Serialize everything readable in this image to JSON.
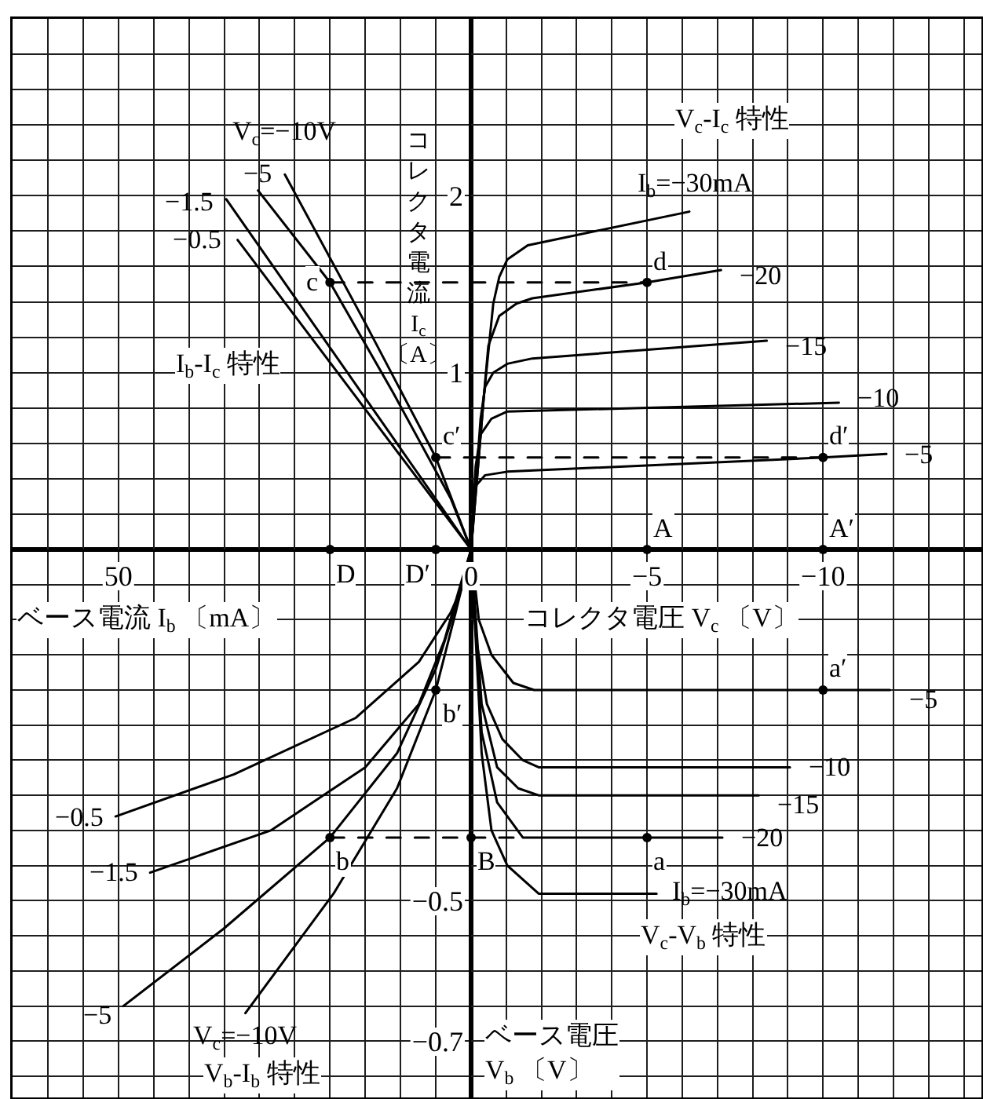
{
  "chart_data": [
    {
      "type": "line",
      "title": "I$_{b}$-I$_{c}$ 特性",
      "xlabel": "ベース電流 I$_{b}$ 〔mA〕",
      "xlim": [
        65,
        0
      ],
      "xticks": [
        {
          "value": 65,
          "label": null
        },
        {
          "value": 60,
          "label": null
        },
        {
          "value": 55,
          "label": null
        },
        50,
        {
          "value": 45,
          "label": null
        },
        {
          "value": 40,
          "label": null
        },
        {
          "value": 35,
          "label": null
        },
        {
          "value": 30,
          "label": null
        },
        {
          "value": 25,
          "label": null
        },
        {
          "value": 20,
          "label": null
        },
        {
          "value": 15,
          "label": null
        },
        {
          "value": 10,
          "label": null
        },
        {
          "value": 5,
          "label": null
        },
        0
      ],
      "ylim": [
        0,
        3
      ],
      "yticks": [
        {
          "value": 0,
          "label": null
        },
        {
          "value": 0.2,
          "label": null
        },
        {
          "value": 0.4,
          "label": null
        },
        {
          "value": 0.6,
          "label": null
        },
        {
          "value": 0.8,
          "label": null
        },
        1,
        {
          "value": 1.2,
          "label": null
        },
        {
          "value": 1.4,
          "label": null
        },
        {
          "value": 1.6,
          "label": null
        },
        {
          "value": 1.8,
          "label": null
        },
        2,
        {
          "value": 2.2,
          "label": null
        },
        {
          "value": 2.4,
          "label": null
        },
        {
          "value": 2.6,
          "label": null
        },
        {
          "value": 2.8,
          "label": null
        },
        {
          "value": 3,
          "label": null
        }
      ],
      "tick_labels": "x",
      "grid": true,
      "series": [
        {
          "name": "V$_{c}$=−10V",
          "color": "#000000",
          "x": [
            0,
            5,
            15,
            26.4
          ],
          "values": [
            0,
            0.52,
            1.28,
            2.12
          ]
        },
        {
          "name": "−5",
          "color": "#000000",
          "x": [
            0,
            2.9,
            11.1,
            20,
            30.2
          ],
          "values": [
            0,
            0.29,
            0.89,
            1.51,
            2.03
          ]
        },
        {
          "name": "−1.5",
          "color": "#000000",
          "x": [
            0,
            34.7
          ],
          "values": [
            0,
            1.98
          ]
        },
        {
          "name": "−0.5",
          "color": "#000000",
          "x": [
            0,
            33.1
          ],
          "values": [
            0,
            1.75
          ]
        },
        {
          "color": "#000000",
          "line_style": "dashed",
          "x": [
            20,
            0
          ],
          "values": [
            1.51,
            1.51
          ]
        },
        {
          "color": "#000000",
          "line_style": "dashed",
          "x": [
            5,
            0
          ],
          "values": [
            0.52,
            0.52
          ]
        },
        {
          "type": "scatter",
          "marker": "circle",
          "color": "#000000",
          "x": [
            20,
            5,
            20,
            5
          ],
          "values": [
            1.51,
            0.52,
            0,
            0
          ]
        }
      ],
      "annotations": [
        {
          "text": "c",
          "x": 20,
          "y": 1.51
        },
        {
          "text": "c′",
          "x": 5,
          "y": 0.52
        },
        {
          "text": "D",
          "x": 20,
          "y": 0
        },
        {
          "text": "D′",
          "x": 5,
          "y": 0
        }
      ]
    },
    {
      "type": "line",
      "title": "V$_{c}$-I$_{c}$ 特性",
      "xlabel": "コレクタ電圧 V$_{c}$ 〔V〕",
      "ylabel": "コレクタ電流 I$_{c}$ 〔A〕",
      "xlim": [
        0,
        -14.5
      ],
      "xticks": [
        {
          "value": 0,
          "label": null
        },
        {
          "value": -1,
          "label": null
        },
        {
          "value": -2,
          "label": null
        },
        {
          "value": -3,
          "label": null
        },
        {
          "value": -4,
          "label": null
        },
        -5,
        {
          "value": -6,
          "label": null
        },
        {
          "value": -7,
          "label": null
        },
        {
          "value": -8,
          "label": null
        },
        {
          "value": -9,
          "label": null
        },
        -10,
        {
          "value": -11,
          "label": null
        },
        {
          "value": -12,
          "label": null
        },
        {
          "value": -13,
          "label": null
        },
        {
          "value": -14,
          "label": null
        }
      ],
      "ylim": [
        0,
        3
      ],
      "yticks": [
        {
          "value": 0,
          "label": null
        },
        {
          "value": 0.2,
          "label": null
        },
        {
          "value": 0.4,
          "label": null
        },
        {
          "value": 0.6,
          "label": null
        },
        {
          "value": 0.8,
          "label": null
        },
        1,
        {
          "value": 1.2,
          "label": null
        },
        {
          "value": 1.4,
          "label": null
        },
        {
          "value": 1.6,
          "label": null
        },
        {
          "value": 1.8,
          "label": null
        },
        2,
        {
          "value": 2.2,
          "label": null
        },
        {
          "value": 2.4,
          "label": null
        },
        {
          "value": 2.6,
          "label": null
        },
        {
          "value": 2.8,
          "label": null
        },
        {
          "value": 3,
          "label": null
        }
      ],
      "grid": true,
      "series": [
        {
          "name": "I$_{b}$=−30mA",
          "color": "#000000",
          "x": [
            0,
            -0.36,
            -0.63,
            -0.8,
            -1.03,
            -1.61,
            -6.2
          ],
          "values": [
            0,
            0.86,
            1.39,
            1.54,
            1.64,
            1.72,
            1.91
          ]
        },
        {
          "name": "−20",
          "color": "#000000",
          "x": [
            0,
            -0.36,
            -0.49,
            -0.8,
            -1.29,
            -1.74,
            -5,
            -7.1
          ],
          "values": [
            0,
            0.86,
            1.15,
            1.32,
            1.39,
            1.42,
            1.51,
            1.58
          ]
        },
        {
          "name": "−15",
          "color": "#000000",
          "x": [
            0,
            -0.27,
            -0.4,
            -0.63,
            -1.03,
            -1.74,
            -8.4
          ],
          "values": [
            0,
            0.74,
            0.92,
            1.0,
            1.05,
            1.08,
            1.18
          ]
        },
        {
          "name": "−10",
          "color": "#000000",
          "x": [
            0,
            -0.13,
            -0.27,
            -0.58,
            -1.03,
            -10.45
          ],
          "values": [
            0,
            0.47,
            0.65,
            0.74,
            0.78,
            0.83
          ]
        },
        {
          "name": "−5",
          "color": "#000000",
          "x": [
            0,
            -0.13,
            -0.4,
            -1.03,
            -10,
            -11.8
          ],
          "values": [
            0,
            0.36,
            0.42,
            0.44,
            0.52,
            0.54
          ]
        },
        {
          "color": "#000000",
          "line_style": "dashed",
          "x": [
            0,
            -5
          ],
          "values": [
            1.51,
            1.51
          ]
        },
        {
          "color": "#000000",
          "line_style": "dashed",
          "x": [
            0,
            -10
          ],
          "values": [
            0.52,
            0.52
          ]
        },
        {
          "type": "scatter",
          "marker": "circle",
          "color": "#000000",
          "x": [
            -5,
            -10,
            -5,
            -10
          ],
          "values": [
            1.51,
            0.52,
            0,
            0
          ]
        }
      ],
      "annotations": [
        {
          "text": "d",
          "x": -5,
          "y": 1.51
        },
        {
          "text": "d′",
          "x": -10,
          "y": 0.52
        },
        {
          "text": "A",
          "x": -5,
          "y": 0
        },
        {
          "text": "A′",
          "x": -10,
          "y": 0
        }
      ]
    },
    {
      "type": "line",
      "title": "V$_{b}$-I$_{b}$ 特性",
      "xlim": [
        65,
        0
      ],
      "xticks": [
        {
          "value": 65,
          "label": null
        },
        {
          "value": 60,
          "label": null
        },
        {
          "value": 55,
          "label": null
        },
        50,
        {
          "value": 45,
          "label": null
        },
        {
          "value": 40,
          "label": null
        },
        {
          "value": 35,
          "label": null
        },
        {
          "value": 30,
          "label": null
        },
        {
          "value": 25,
          "label": null
        },
        {
          "value": 20,
          "label": null
        },
        {
          "value": 15,
          "label": null
        },
        {
          "value": 10,
          "label": null
        },
        {
          "value": 5,
          "label": null
        },
        0
      ],
      "ylim": [
        -0.78,
        0
      ],
      "yticks": [
        {
          "value": 0,
          "label": null
        },
        {
          "value": -0.05,
          "label": null
        },
        {
          "value": -0.1,
          "label": null
        },
        {
          "value": -0.15,
          "label": null
        },
        {
          "value": -0.2,
          "label": null
        },
        {
          "value": -0.25,
          "label": null
        },
        {
          "value": -0.3,
          "label": null
        },
        {
          "value": -0.35,
          "label": null
        },
        {
          "value": -0.4,
          "label": null
        },
        {
          "value": -0.45,
          "label": null
        },
        -0.5,
        {
          "value": -0.55,
          "label": null
        },
        {
          "value": -0.6,
          "label": null
        },
        {
          "value": -0.65,
          "label": null
        },
        -0.7,
        {
          "value": -0.75,
          "label": null
        }
      ],
      "tick_labels": false,
      "grid": true,
      "series": [
        {
          "name": "−0.5",
          "color": "#000000",
          "x": [
            0,
            0.7,
            2.9,
            7.4,
            16.4,
            33.6,
            50.4
          ],
          "values": [
            0,
            -0.04,
            -0.09,
            -0.16,
            -0.24,
            -0.32,
            -0.38
          ]
        },
        {
          "name": "−1.5",
          "color": "#000000",
          "x": [
            0,
            1.5,
            3.8,
            7.4,
            15,
            28.4,
            45.5
          ],
          "values": [
            0,
            -0.05,
            -0.13,
            -0.22,
            -0.31,
            -0.4,
            -0.46
          ]
        },
        {
          "name": "−5",
          "color": "#000000",
          "x": [
            0,
            1.5,
            5,
            10.5,
            20,
            35.1,
            49.3
          ],
          "values": [
            0,
            -0.06,
            -0.17,
            -0.29,
            -0.41,
            -0.54,
            -0.65
          ]
        },
        {
          "name": "V$_{c}$=−10V",
          "color": "#000000",
          "x": [
            0,
            2.2,
            5,
            10.5,
            19.5,
            32
          ],
          "values": [
            0,
            -0.09,
            -0.2,
            -0.34,
            -0.49,
            -0.66
          ]
        },
        {
          "color": "#000000",
          "line_style": "dashed",
          "x": [
            20,
            0
          ],
          "values": [
            -0.41,
            -0.41
          ]
        },
        {
          "type": "scatter",
          "marker": "circle",
          "color": "#000000",
          "x": [
            20,
            5
          ],
          "values": [
            -0.41,
            -0.2
          ]
        }
      ],
      "annotations": [
        {
          "text": "b",
          "x": 20,
          "y": -0.41
        },
        {
          "text": "b′",
          "x": 5,
          "y": -0.2
        }
      ]
    },
    {
      "type": "line",
      "title": "V$_{c}$-V$_{b}$ 特性",
      "ylabel": "ベース電圧\nV$_{b}$ 〔V〕",
      "xlim": [
        0,
        -14.5
      ],
      "xticks": [
        {
          "value": 0,
          "label": null
        },
        {
          "value": -1,
          "label": null
        },
        {
          "value": -2,
          "label": null
        },
        {
          "value": -3,
          "label": null
        },
        {
          "value": -4,
          "label": null
        },
        -5,
        {
          "value": -6,
          "label": null
        },
        {
          "value": -7,
          "label": null
        },
        {
          "value": -8,
          "label": null
        },
        {
          "value": -9,
          "label": null
        },
        -10,
        {
          "value": -11,
          "label": null
        },
        {
          "value": -12,
          "label": null
        },
        {
          "value": -13,
          "label": null
        },
        {
          "value": -14,
          "label": null
        }
      ],
      "ylim": [
        -0.78,
        0
      ],
      "yticks": [
        {
          "value": 0,
          "label": null
        },
        {
          "value": -0.05,
          "label": null
        },
        {
          "value": -0.1,
          "label": null
        },
        {
          "value": -0.15,
          "label": null
        },
        {
          "value": -0.2,
          "label": null
        },
        {
          "value": -0.25,
          "label": null
        },
        {
          "value": -0.3,
          "label": null
        },
        {
          "value": -0.35,
          "label": null
        },
        {
          "value": -0.4,
          "label": null
        },
        {
          "value": -0.45,
          "label": null
        },
        -0.5,
        {
          "value": -0.55,
          "label": null
        },
        {
          "value": -0.6,
          "label": null
        },
        {
          "value": -0.65,
          "label": null
        },
        -0.7,
        {
          "value": -0.75,
          "label": null
        }
      ],
      "tick_labels": "y",
      "grid": true,
      "series": [
        {
          "name": "−5",
          "color": "#000000",
          "x": [
            0,
            -0.22,
            -0.58,
            -1.2,
            -1.79,
            -10,
            -11.9
          ],
          "values": [
            0,
            -0.1,
            -0.15,
            -0.19,
            -0.2,
            -0.2,
            -0.2
          ]
        },
        {
          "name": "−10",
          "color": "#000000",
          "x": [
            0,
            -0.15,
            -0.45,
            -0.89,
            -1.47,
            -1.92,
            -9.06
          ],
          "values": [
            0,
            -0.13,
            -0.22,
            -0.27,
            -0.3,
            -0.31,
            -0.31
          ]
        },
        {
          "name": "−15",
          "color": "#000000",
          "x": [
            0,
            -0.3,
            -0.74,
            -1.34,
            -1.92,
            -8.17
          ],
          "values": [
            0,
            -0.22,
            -0.31,
            -0.34,
            -0.35,
            -0.35
          ]
        },
        {
          "name": "−20",
          "color": "#000000",
          "x": [
            0,
            -0.3,
            -0.74,
            -1.47,
            -7.14
          ],
          "values": [
            0,
            -0.26,
            -0.36,
            -0.41,
            -0.41
          ]
        },
        {
          "name": "I$_{b}$=−30mA",
          "color": "#000000",
          "x": [
            0,
            -0.3,
            -0.58,
            -1.03,
            -1.92,
            -5.27
          ],
          "values": [
            0,
            -0.29,
            -0.4,
            -0.45,
            -0.49,
            -0.49
          ]
        },
        {
          "color": "#000000",
          "line_style": "dashed",
          "x": [
            0,
            -1.47
          ],
          "values": [
            -0.41,
            -0.41
          ]
        },
        {
          "type": "scatter",
          "marker": "circle",
          "color": "#000000",
          "x": [
            -5,
            -10,
            0
          ],
          "values": [
            -0.41,
            -0.2,
            -0.41
          ]
        }
      ],
      "annotations": [
        {
          "text": "a",
          "x": -5,
          "y": -0.41
        },
        {
          "text": "a′",
          "x": -10,
          "y": -0.2
        },
        {
          "text": "B",
          "x": 0,
          "y": -0.41
        }
      ]
    }
  ]
}
